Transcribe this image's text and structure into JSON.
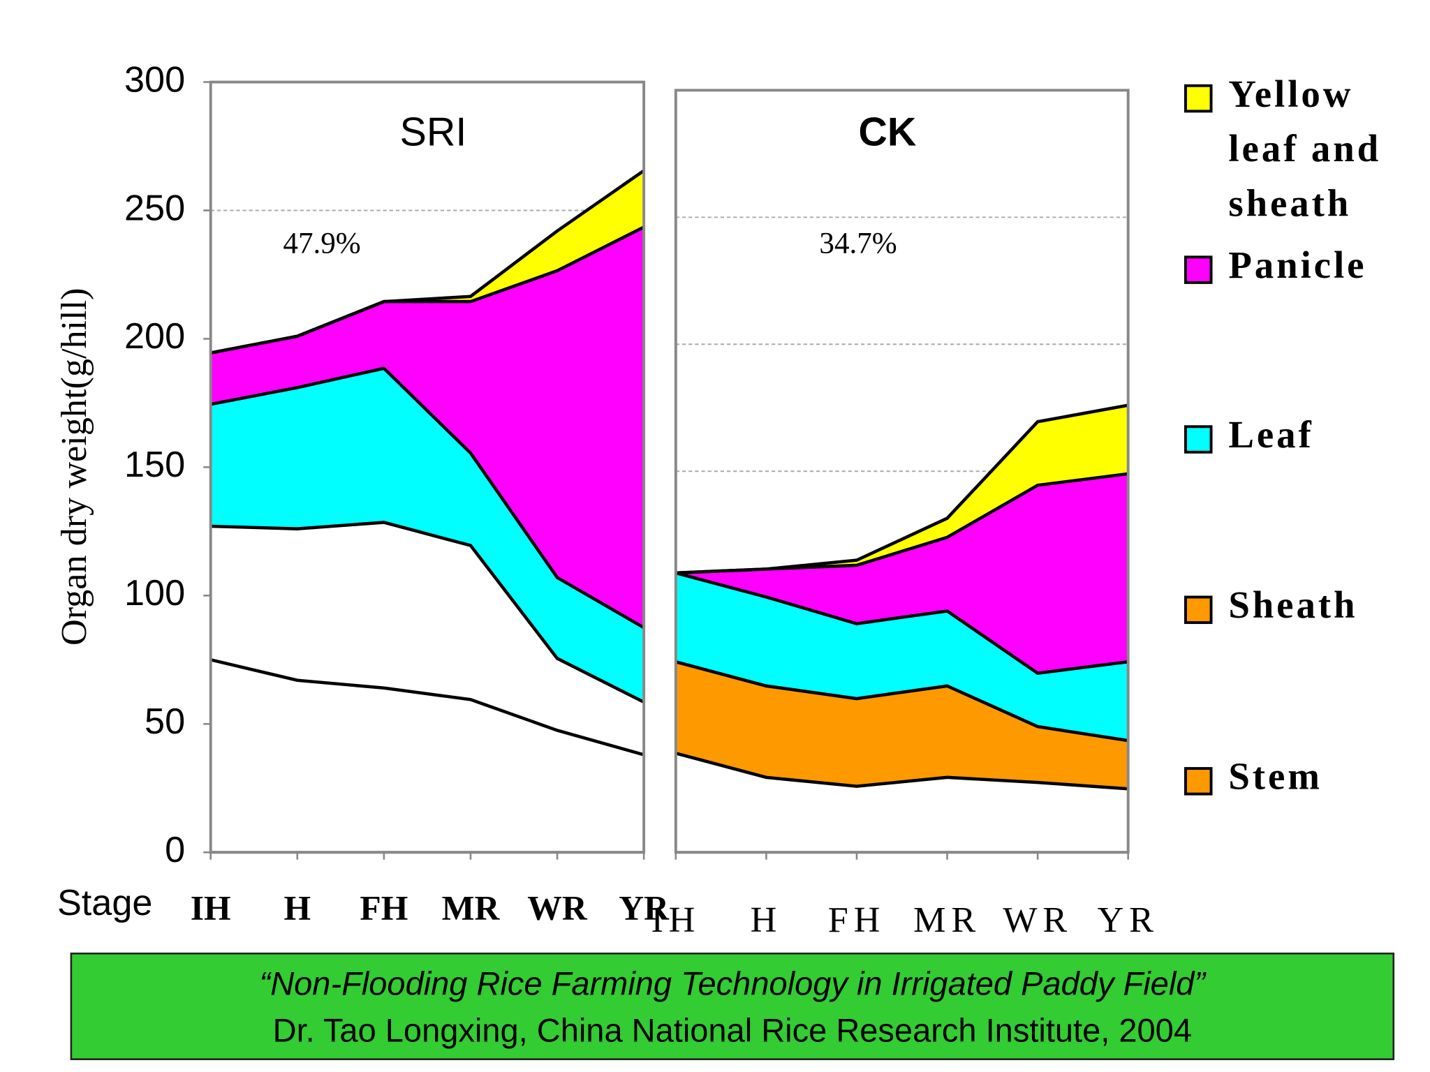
{
  "chart_data": [
    {
      "type": "stacked-area",
      "title": "SRI",
      "y_label": "Organ dry weight(g/hill)",
      "x_label": "Stage",
      "annotation": "47.9%",
      "categories": [
        "IH",
        "H",
        "FH",
        "MR",
        "WR",
        "YR"
      ],
      "ylim": [
        0,
        300
      ],
      "yticks": [
        0,
        50,
        100,
        150,
        200,
        250,
        300
      ],
      "grid_lines": [
        250
      ],
      "series": [
        {
          "name": "Stem",
          "color": "#ffffff",
          "values": [
            75,
            67,
            64,
            59.5,
            47.5,
            38
          ]
        },
        {
          "name": "Sheath",
          "color": "#ffffff",
          "values": [
            52,
            59,
            64.5,
            60,
            28,
            20.5
          ]
        },
        {
          "name": "Leaf",
          "color": "#00ffff",
          "values": [
            47.5,
            55,
            60,
            36,
            31.5,
            29
          ]
        },
        {
          "name": "Panicle",
          "color": "#ff00ff",
          "values": [
            20,
            20,
            26,
            59,
            119.5,
            156
          ]
        },
        {
          "name": "Yellow leaf and sheath",
          "color": "#ffff00",
          "values": [
            0,
            0,
            0,
            2,
            15.5,
            22
          ]
        }
      ]
    },
    {
      "type": "stacked-area",
      "title": "CK",
      "annotation": "34.7%",
      "categories": [
        "IH",
        "H",
        "FH",
        "MR",
        "WR",
        "YR"
      ],
      "ylim": [
        0,
        300
      ],
      "grid_lines": [
        150,
        200,
        250
      ],
      "series": [
        {
          "name": "Stem",
          "color": "#ffffff",
          "legend_color": "#ff9900",
          "values": [
            39,
            29.5,
            26,
            29.5,
            27.5,
            25
          ]
        },
        {
          "name": "Sheath",
          "color": "#ff9900",
          "legend_color": "#ff9900",
          "values": [
            36,
            36,
            34.5,
            36,
            22,
            19
          ]
        },
        {
          "name": "Leaf",
          "color": "#00ffff",
          "legend_color": "#00ffff",
          "values": [
            35,
            35,
            29.5,
            29.5,
            21,
            31
          ]
        },
        {
          "name": "Panicle",
          "color": "#ff00ff",
          "legend_color": "#ff00ff",
          "values": [
            0,
            11,
            23,
            29,
            74,
            74
          ]
        },
        {
          "name": "Yellow leaf and sheath",
          "color": "#ffff00",
          "legend_color": "#ffff00",
          "values": [
            0,
            0,
            2,
            7.5,
            25,
            27
          ]
        }
      ]
    }
  ],
  "footer": {
    "line1": "“Non-Flooding Rice Farming Technology in Irrigated Paddy Field”",
    "line2": "Dr. Tao Longxing, China National Rice Research Institute, 2004"
  }
}
